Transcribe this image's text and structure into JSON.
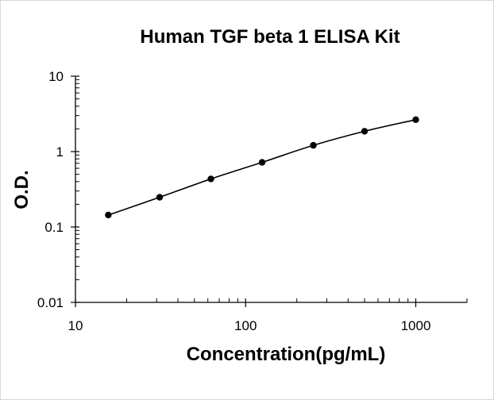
{
  "chart_data": {
    "type": "scatter",
    "title": "Human TGF beta 1 ELISA Kit",
    "xlabel": "Concentration(pg/mL)",
    "ylabel": "O.D.",
    "x_scale": "log",
    "y_scale": "log",
    "xlim": [
      10,
      2000
    ],
    "ylim": [
      0.01,
      10
    ],
    "x_ticks": [
      "10",
      "100",
      "1000"
    ],
    "y_ticks": [
      "0.01",
      "0.1",
      "1",
      "10"
    ],
    "grid": false,
    "legend": "none",
    "series": [
      {
        "marker": "circle",
        "line": "smooth",
        "points": [
          {
            "x": 15.6,
            "y": 0.144
          },
          {
            "x": 31.25,
            "y": 0.248
          },
          {
            "x": 62.5,
            "y": 0.434
          },
          {
            "x": 125,
            "y": 0.72
          },
          {
            "x": 250,
            "y": 1.21
          },
          {
            "x": 500,
            "y": 1.86
          },
          {
            "x": 1000,
            "y": 2.65
          }
        ]
      }
    ],
    "colors": {
      "line": "#000000",
      "marker": "#000000",
      "axis": "#000000",
      "border": "#d9d9d9"
    }
  }
}
